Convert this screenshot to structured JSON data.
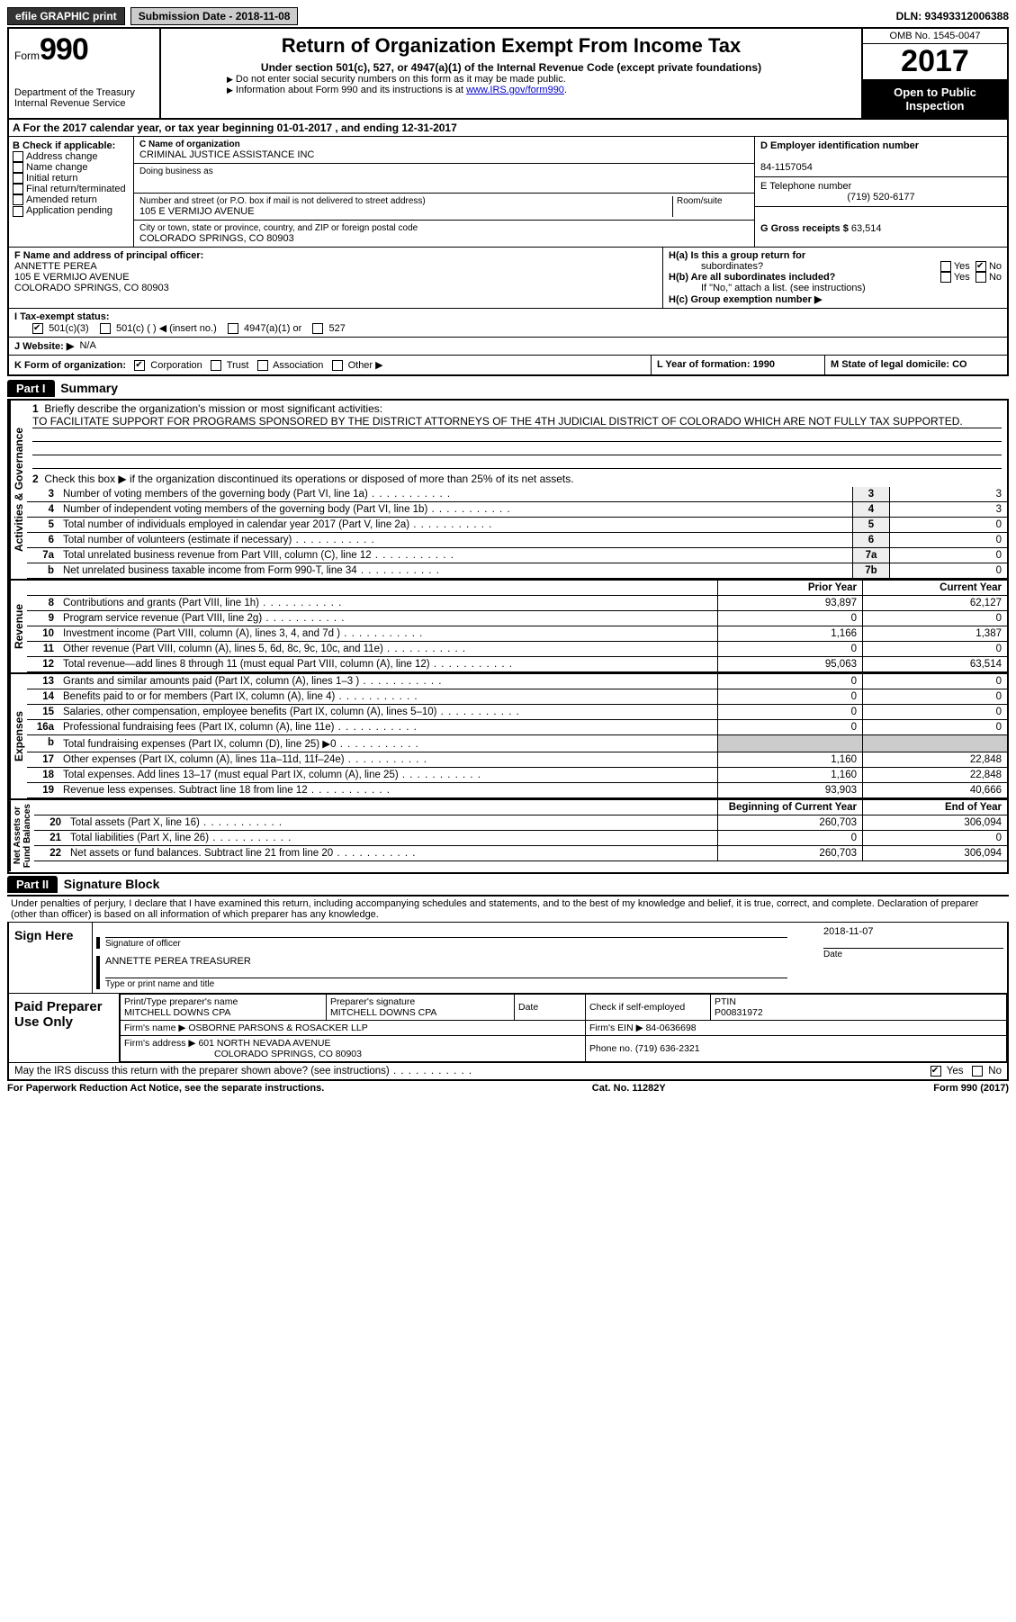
{
  "topbar": {
    "efile": "efile GRAPHIC print",
    "submission_label": "Submission Date - 2018-11-08",
    "dln": "DLN: 93493312006388"
  },
  "header": {
    "form_word": "Form",
    "form_num": "990",
    "dept1": "Department of the Treasury",
    "dept2": "Internal Revenue Service",
    "title": "Return of Organization Exempt From Income Tax",
    "sub": "Under section 501(c), 527, or 4947(a)(1) of the Internal Revenue Code (except private foundations)",
    "note1": "Do not enter social security numbers on this form as it may be made public.",
    "note2_a": "Information about Form 990 and its instructions is at ",
    "note2_link": "www.IRS.gov/form990",
    "omb": "OMB No. 1545-0047",
    "year": "2017",
    "open1": "Open to Public",
    "open2": "Inspection"
  },
  "rowA": "A   For the 2017 calendar year, or tax year beginning 01-01-2017    , and ending 12-31-2017",
  "boxB": {
    "label": "B Check if applicable:",
    "opts": [
      "Address change",
      "Name change",
      "Initial return",
      "Final return/terminated",
      "Amended return",
      "Application pending"
    ]
  },
  "boxC": {
    "name_label": "C Name of organization",
    "name": "CRIMINAL JUSTICE ASSISTANCE INC",
    "dba_label": "Doing business as",
    "addr_label": "Number and street (or P.O. box if mail is not delivered to street address)",
    "room_label": "Room/suite",
    "addr": "105 E VERMIJO AVENUE",
    "city_label": "City or town, state or province, country, and ZIP or foreign postal code",
    "city": "COLORADO SPRINGS, CO  80903"
  },
  "boxD": {
    "label": "D Employer identification number",
    "val": "84-1157054"
  },
  "boxE": {
    "label": "E Telephone number",
    "val": "(719) 520-6177"
  },
  "boxG": {
    "label": "G Gross receipts $",
    "val": "63,514"
  },
  "boxF": {
    "label": "F Name and address of principal officer:",
    "l1": "ANNETTE PEREA",
    "l2": "105 E VERMIJO AVENUE",
    "l3": "COLORADO SPRINGS, CO  80903"
  },
  "boxH": {
    "a": "H(a)  Is this a group return for",
    "a2": "subordinates?",
    "b": "H(b)  Are all subordinates included?",
    "bnote": "If \"No,\" attach a list. (see instructions)",
    "c": "H(c)  Group exemption number ▶",
    "yes": "Yes",
    "no": "No"
  },
  "boxI": {
    "label": "I   Tax-exempt status:",
    "o1": "501(c)(3)",
    "o2": "501(c) (  ) ◀ (insert no.)",
    "o3": "4947(a)(1) or",
    "o4": "527"
  },
  "boxJ": {
    "label": "J   Website: ▶",
    "val": "N/A"
  },
  "boxK": {
    "label": "K Form of organization:",
    "o1": "Corporation",
    "o2": "Trust",
    "o3": "Association",
    "o4": "Other ▶"
  },
  "boxL": "L Year of formation: 1990",
  "boxM": "M State of legal domicile: CO",
  "part1": {
    "hdr": "Part I",
    "title": "Summary"
  },
  "summary": {
    "l1": "Briefly describe the organization's mission or most significant activities:",
    "mission": "TO FACILITATE SUPPORT FOR PROGRAMS SPONSORED BY THE DISTRICT ATTORNEYS OF THE 4TH JUDICIAL DISTRICT OF COLORADO WHICH ARE NOT FULLY TAX SUPPORTED.",
    "l2": "Check this box ▶        if the organization discontinued its operations or disposed of more than 25% of its net assets.",
    "rows_gov": [
      {
        "n": "3",
        "t": "Number of voting members of the governing body (Part VI, line 1a)",
        "b": "3",
        "v": "3"
      },
      {
        "n": "4",
        "t": "Number of independent voting members of the governing body (Part VI, line 1b)",
        "b": "4",
        "v": "3"
      },
      {
        "n": "5",
        "t": "Total number of individuals employed in calendar year 2017 (Part V, line 2a)",
        "b": "5",
        "v": "0"
      },
      {
        "n": "6",
        "t": "Total number of volunteers (estimate if necessary)",
        "b": "6",
        "v": "0"
      },
      {
        "n": "7a",
        "t": "Total unrelated business revenue from Part VIII, column (C), line 12",
        "b": "7a",
        "v": "0"
      },
      {
        "n": "b",
        "t": "Net unrelated business taxable income from Form 990-T, line 34",
        "b": "7b",
        "v": "0"
      }
    ],
    "hdr_prior": "Prior Year",
    "hdr_curr": "Current Year",
    "rows_rev": [
      {
        "n": "8",
        "t": "Contributions and grants (Part VIII, line 1h)",
        "p": "93,897",
        "c": "62,127"
      },
      {
        "n": "9",
        "t": "Program service revenue (Part VIII, line 2g)",
        "p": "0",
        "c": "0"
      },
      {
        "n": "10",
        "t": "Investment income (Part VIII, column (A), lines 3, 4, and 7d )",
        "p": "1,166",
        "c": "1,387"
      },
      {
        "n": "11",
        "t": "Other revenue (Part VIII, column (A), lines 5, 6d, 8c, 9c, 10c, and 11e)",
        "p": "0",
        "c": "0"
      },
      {
        "n": "12",
        "t": "Total revenue—add lines 8 through 11 (must equal Part VIII, column (A), line 12)",
        "p": "95,063",
        "c": "63,514"
      }
    ],
    "rows_exp": [
      {
        "n": "13",
        "t": "Grants and similar amounts paid (Part IX, column (A), lines 1–3 )",
        "p": "0",
        "c": "0"
      },
      {
        "n": "14",
        "t": "Benefits paid to or for members (Part IX, column (A), line 4)",
        "p": "0",
        "c": "0"
      },
      {
        "n": "15",
        "t": "Salaries, other compensation, employee benefits (Part IX, column (A), lines 5–10)",
        "p": "0",
        "c": "0"
      },
      {
        "n": "16a",
        "t": "Professional fundraising fees (Part IX, column (A), line 11e)",
        "p": "0",
        "c": "0"
      },
      {
        "n": "b",
        "t": "Total fundraising expenses (Part IX, column (D), line 25) ▶0",
        "p": "",
        "c": "",
        "grey": true
      },
      {
        "n": "17",
        "t": "Other expenses (Part IX, column (A), lines 11a–11d, 11f–24e)",
        "p": "1,160",
        "c": "22,848"
      },
      {
        "n": "18",
        "t": "Total expenses. Add lines 13–17 (must equal Part IX, column (A), line 25)",
        "p": "1,160",
        "c": "22,848"
      },
      {
        "n": "19",
        "t": "Revenue less expenses. Subtract line 18 from line 12",
        "p": "93,903",
        "c": "40,666"
      }
    ],
    "hdr_beg": "Beginning of Current Year",
    "hdr_end": "End of Year",
    "rows_net": [
      {
        "n": "20",
        "t": "Total assets (Part X, line 16)",
        "p": "260,703",
        "c": "306,094"
      },
      {
        "n": "21",
        "t": "Total liabilities (Part X, line 26)",
        "p": "0",
        "c": "0"
      },
      {
        "n": "22",
        "t": "Net assets or fund balances. Subtract line 21 from line 20",
        "p": "260,703",
        "c": "306,094"
      }
    ],
    "side_gov": "Activities & Governance",
    "side_rev": "Revenue",
    "side_exp": "Expenses",
    "side_net": "Net Assets or\nFund Balances"
  },
  "part2": {
    "hdr": "Part II",
    "title": "Signature Block"
  },
  "sig": {
    "perjury": "Under penalties of perjury, I declare that I have examined this return, including accompanying schedules and statements, and to the best of my knowledge and belief, it is true, correct, and complete. Declaration of preparer (other than officer) is based on all information of which preparer has any knowledge.",
    "sign_here": "Sign Here",
    "sig_officer": "Signature of officer",
    "date_l": "Date",
    "date_v": "2018-11-07",
    "name_title": "ANNETTE PEREA  TREASURER",
    "type_name": "Type or print name and title",
    "paid": "Paid Preparer Use Only",
    "pname_l": "Print/Type preparer's name",
    "pname": "MITCHELL DOWNS CPA",
    "psig_l": "Preparer's signature",
    "psig": "MITCHELL DOWNS CPA",
    "pdate_l": "Date",
    "pcheck": "Check         if self-employed",
    "ptin_l": "PTIN",
    "ptin": "P00831972",
    "firm_l": "Firm's name     ▶",
    "firm": "OSBORNE PARSONS & ROSACKER LLP",
    "fein_l": "Firm's EIN ▶",
    "fein": "84-0636698",
    "faddr_l": "Firm's address ▶",
    "faddr1": "601 NORTH NEVADA AVENUE",
    "faddr2": "COLORADO SPRINGS, CO  80903",
    "phone_l": "Phone no.",
    "phone": "(719) 636-2321",
    "discuss": "May the IRS discuss this return with the preparer shown above? (see instructions)",
    "yes": "Yes",
    "no": "No"
  },
  "footer": {
    "l": "For Paperwork Reduction Act Notice, see the separate instructions.",
    "m": "Cat. No. 11282Y",
    "r": "Form 990 (2017)"
  }
}
